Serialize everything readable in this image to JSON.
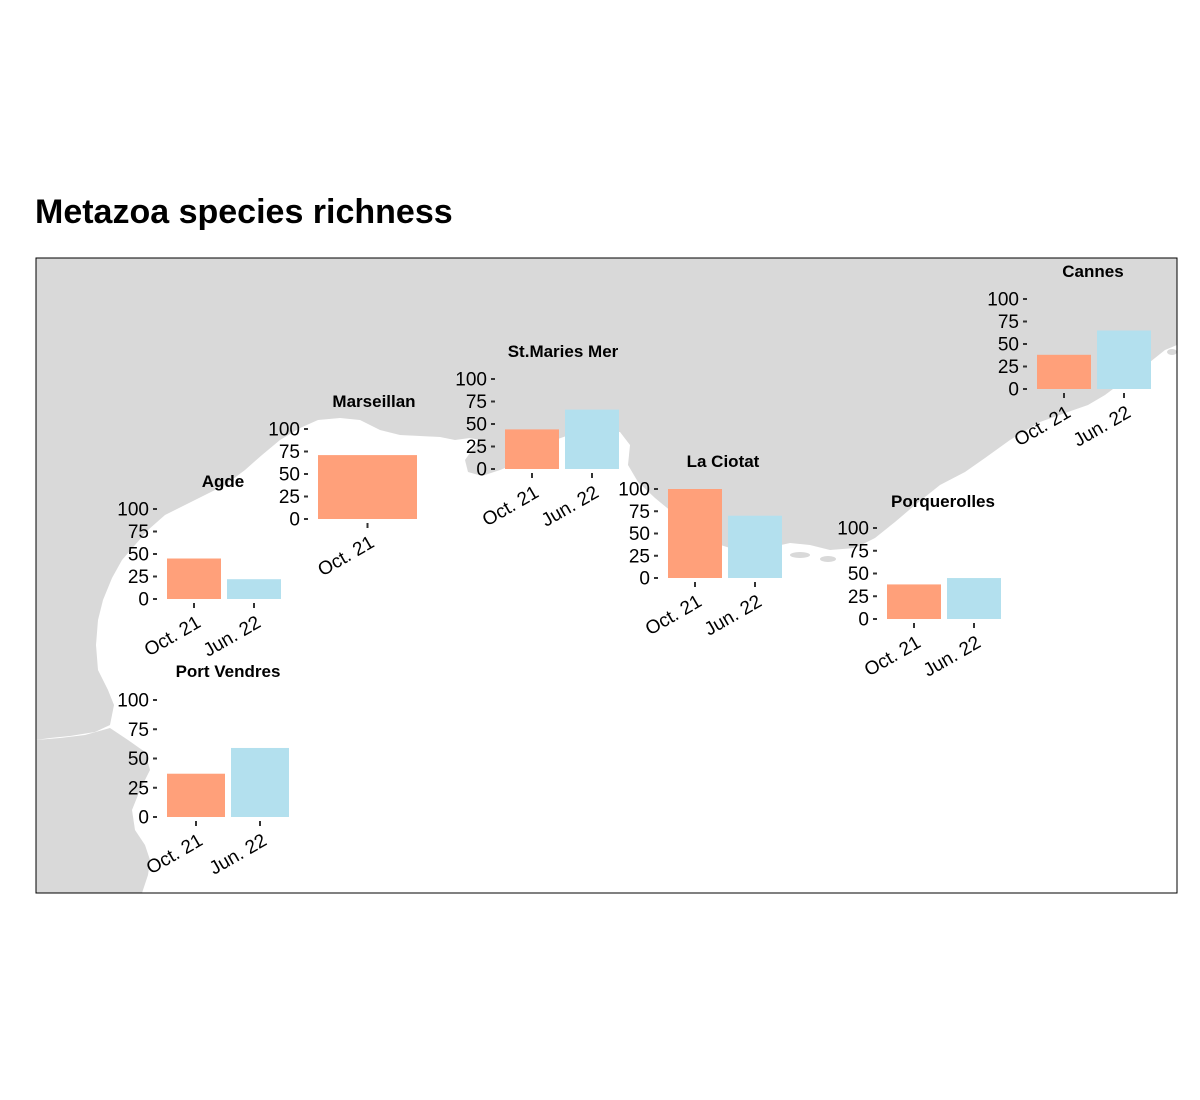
{
  "title": "Metazoa species richness",
  "colors": {
    "land": "#d9d9d9",
    "sea": "#ffffff",
    "border": "#000000",
    "period_colors": {
      "Oct. 21": "#ffa07a",
      "Jun. 22": "#b3e0ee"
    }
  },
  "chart_data": {
    "type": "bar",
    "title": "Metazoa species richness",
    "background": "map",
    "ylim": [
      0,
      100
    ],
    "y_ticks": [
      "0",
      "25",
      "50",
      "75",
      "100"
    ],
    "periods": [
      "Oct. 21",
      "Jun. 22"
    ],
    "sites": [
      {
        "name": "Agde",
        "categories": [
          "Oct. 21",
          "Jun. 22"
        ],
        "values": [
          45,
          22
        ]
      },
      {
        "name": "Marseillan",
        "categories": [
          "Oct. 21"
        ],
        "values": [
          71
        ]
      },
      {
        "name": "St.Maries Mer",
        "categories": [
          "Oct. 21",
          "Jun. 22"
        ],
        "values": [
          44,
          66
        ]
      },
      {
        "name": "La Ciotat",
        "categories": [
          "Oct. 21",
          "Jun. 22"
        ],
        "values": [
          100,
          70
        ]
      },
      {
        "name": "Porquerolles",
        "categories": [
          "Oct. 21",
          "Jun. 22"
        ],
        "values": [
          38,
          45
        ]
      },
      {
        "name": "Cannes",
        "categories": [
          "Oct. 21",
          "Jun. 22"
        ],
        "values": [
          38,
          65
        ]
      },
      {
        "name": "Port Vendres",
        "categories": [
          "Oct. 21",
          "Jun. 22"
        ],
        "values": [
          37,
          59
        ]
      }
    ]
  }
}
